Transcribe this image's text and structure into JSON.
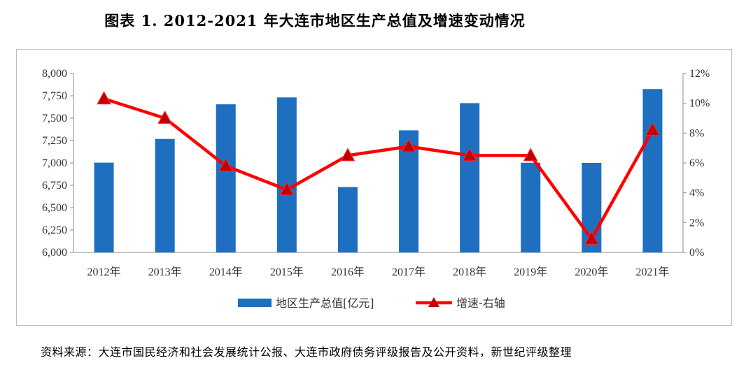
{
  "title": "图表 1.   2012-2021 年大连市地区生产总值及增速变动情况",
  "source": "资料来源：大连市国民经济和社会发展统计公报、大连市政府债务评级报告及公开资料，新世纪评级整理",
  "chart_data": {
    "type": "bar+line",
    "categories": [
      "2012年",
      "2013年",
      "2014年",
      "2015年",
      "2016年",
      "2017年",
      "2018年",
      "2019年",
      "2020年",
      "2021年"
    ],
    "series": [
      {
        "name": "地区生产总值[亿元]",
        "type": "bar",
        "axis": "left",
        "color": "#1f6fc0",
        "values": [
          7003,
          7268,
          7655,
          7732,
          6731,
          7364,
          7668,
          7002,
          7000,
          7826
        ]
      },
      {
        "name": "增速-右轴",
        "type": "line",
        "axis": "right",
        "color": "#ff0000",
        "marker_color": "#c00000",
        "values": [
          10.3,
          9.0,
          5.8,
          4.2,
          6.5,
          7.1,
          6.5,
          6.5,
          0.9,
          8.2
        ]
      }
    ],
    "left_axis": {
      "ylim": [
        6000,
        8000
      ],
      "ticks": [
        "6,000",
        "6,250",
        "6,500",
        "6,750",
        "7,000",
        "7,250",
        "7,500",
        "7,750",
        "8,000"
      ]
    },
    "right_axis": {
      "ylim": [
        0,
        12
      ],
      "ticks": [
        "0%",
        "2%",
        "4%",
        "6%",
        "8%",
        "10%",
        "12%"
      ]
    },
    "grid": false,
    "legend": "bottom"
  }
}
